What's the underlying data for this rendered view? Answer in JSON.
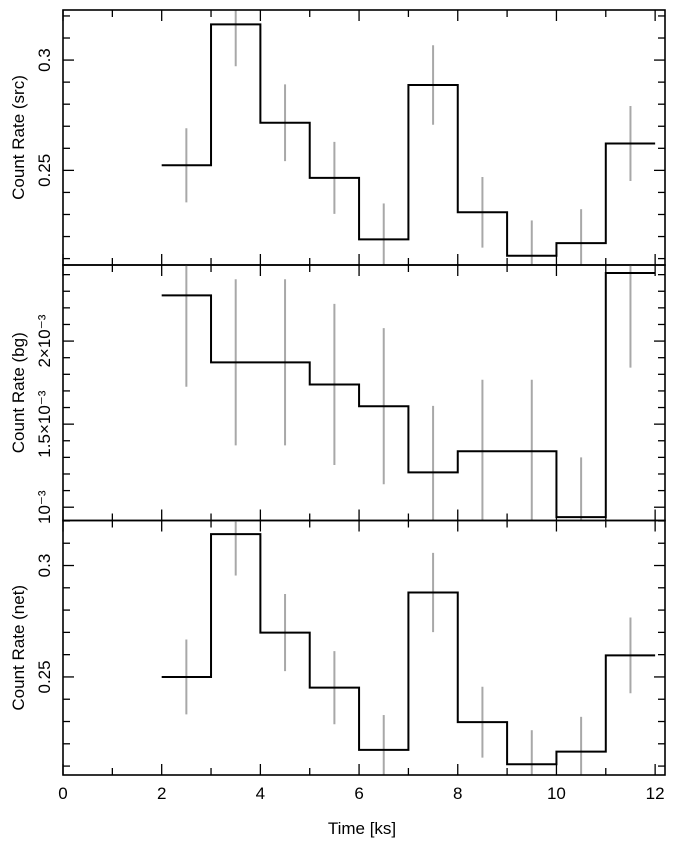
{
  "chart_data": {
    "type": "line",
    "xlabel": "Time [ks]",
    "xlim": [
      0,
      12.2
    ],
    "x_ticks": [
      "0",
      "2",
      "4",
      "6",
      "8",
      "10",
      "12"
    ],
    "x_tick_values": [
      0,
      2,
      4,
      6,
      8,
      10,
      12
    ],
    "x_minor_step": 1,
    "bin_edges": [
      2,
      3,
      4,
      5,
      6,
      7,
      8,
      9,
      10,
      11,
      12
    ],
    "bin_centers": [
      2.5,
      3.5,
      4.5,
      5.5,
      6.5,
      7.5,
      8.5,
      9.5,
      10.5,
      11.5
    ],
    "panels": [
      {
        "name": "src",
        "ylabel": "Count Rate (src)",
        "ylim": [
          0.2071,
          0.3227
        ],
        "y_ticks": [
          "0.25",
          "0.3"
        ],
        "y_tick_values": [
          0.25,
          0.3
        ],
        "y_minor_step": 0.01,
        "values": [
          0.2523,
          0.3162,
          0.2716,
          0.2466,
          0.2187,
          0.2887,
          0.231,
          0.2113,
          0.217,
          0.2622
        ],
        "errors": [
          0.0168,
          0.019,
          0.0174,
          0.0163,
          0.0163,
          0.018,
          0.016,
          0.016,
          0.0154,
          0.017
        ]
      },
      {
        "name": "bg",
        "ylabel": "Count Rate (bg)",
        "ylim": [
          0.00092,
          0.002458
        ],
        "y_ticks": [
          "10⁻³",
          "1.5×10⁻³",
          "2×10⁻³"
        ],
        "y_tick_values": [
          0.001,
          0.0015,
          0.002
        ],
        "y_minor_step": 0.0001,
        "values": [
          0.002275,
          0.001872,
          0.001872,
          0.001739,
          0.001608,
          0.00121,
          0.001337,
          0.001337,
          0.00094,
          0.00241
        ],
        "errors": [
          0.00055,
          0.0005,
          0.0005,
          0.000485,
          0.00047,
          0.0004,
          0.00043,
          0.00043,
          0.00036,
          0.00057
        ]
      },
      {
        "name": "net",
        "ylabel": "Count Rate (net)",
        "ylim": [
          0.206,
          0.3202
        ],
        "y_ticks": [
          "0.25",
          "0.3"
        ],
        "y_tick_values": [
          0.25,
          0.3
        ],
        "y_minor_step": 0.01,
        "values": [
          0.25,
          0.3141,
          0.2699,
          0.2452,
          0.2173,
          0.2879,
          0.2297,
          0.2108,
          0.2165,
          0.2597
        ],
        "errors": [
          0.0168,
          0.0186,
          0.0173,
          0.0164,
          0.0156,
          0.0178,
          0.0159,
          0.0153,
          0.0156,
          0.017
        ]
      }
    ],
    "colors": {
      "histogram": "#000000",
      "error_bars": "#a8a8a8"
    }
  }
}
